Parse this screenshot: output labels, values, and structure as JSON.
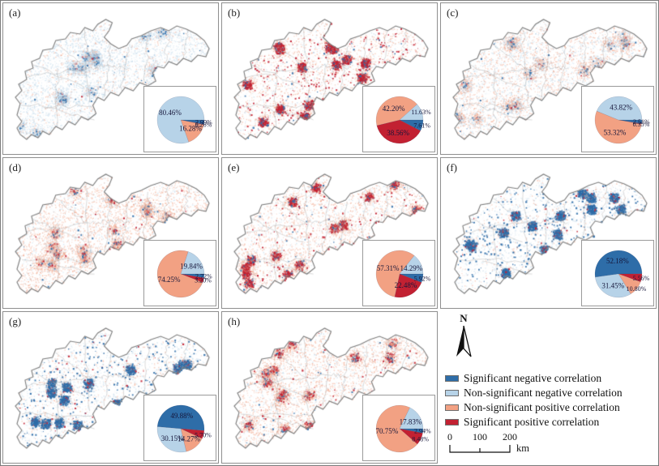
{
  "north_label": "N",
  "colors": {
    "sig_neg": "#2e6da8",
    "non_sig_neg": "#b7d3e8",
    "non_sig_pos": "#f2a183",
    "sig_pos": "#c22132",
    "pie_label_text": "#16163a",
    "panel_border": "#8f8f8f"
  },
  "legend": {
    "items": [
      {
        "category": "sig_neg",
        "label": "Significant negative correlation",
        "color": "#2e6da8"
      },
      {
        "category": "non_sig_neg",
        "label": "Non-significant negative correlation",
        "color": "#b7d3e8"
      },
      {
        "category": "non_sig_pos",
        "label": "Non-significant positive correlation",
        "color": "#f2a183"
      },
      {
        "category": "sig_pos",
        "label": "Significant positive correlation",
        "color": "#c22132"
      }
    ]
  },
  "scale_bar": {
    "tick_labels": [
      "0",
      "100",
      "200"
    ],
    "unit": "km"
  },
  "panels": [
    {
      "label": "(a)",
      "start_angle": 0,
      "pie": {
        "slices": [
          {
            "category": "sig_neg",
            "value": 2.99,
            "text": "2.99%"
          },
          {
            "category": "sig_pos",
            "value": 0.26,
            "text": "0.26%"
          },
          {
            "category": "non_sig_pos",
            "value": 16.28,
            "text": "16.28%"
          },
          {
            "category": "non_sig_neg",
            "value": 80.46,
            "text": "80.46%"
          }
        ]
      }
    },
    {
      "label": "(b)",
      "start_angle": 0,
      "pie": {
        "slices": [
          {
            "category": "sig_neg",
            "value": 7.61,
            "text": "7.61%"
          },
          {
            "category": "sig_pos",
            "value": 38.56,
            "text": "38.56%"
          },
          {
            "category": "non_sig_pos",
            "value": 42.2,
            "text": "42.20%"
          },
          {
            "category": "non_sig_neg",
            "value": 11.63,
            "text": "11.63%"
          }
        ]
      }
    },
    {
      "label": "(c)",
      "start_angle": 0,
      "pie": {
        "slices": [
          {
            "category": "sig_neg",
            "value": 2.51,
            "text": "2.51%"
          },
          {
            "category": "sig_pos",
            "value": 0.35,
            "text": "0.35%"
          },
          {
            "category": "non_sig_pos",
            "value": 53.32,
            "text": "53.32%"
          },
          {
            "category": "non_sig_neg",
            "value": 43.82,
            "text": "43.82%"
          }
        ]
      }
    },
    {
      "label": "(d)",
      "start_angle": 0,
      "pie": {
        "slices": [
          {
            "category": "sig_neg",
            "value": 2.72,
            "text": "2.72%"
          },
          {
            "category": "sig_pos",
            "value": 3.2,
            "text": "3.20%"
          },
          {
            "category": "non_sig_pos",
            "value": 74.25,
            "text": "74.25%"
          },
          {
            "category": "non_sig_neg",
            "value": 19.84,
            "text": "19.84%"
          }
        ]
      }
    },
    {
      "label": "(e)",
      "start_angle": 0,
      "pie": {
        "slices": [
          {
            "category": "sig_neg",
            "value": 5.92,
            "text": "5.92%"
          },
          {
            "category": "sig_pos",
            "value": 22.48,
            "text": "22.48%"
          },
          {
            "category": "non_sig_pos",
            "value": 57.31,
            "text": "57.31%"
          },
          {
            "category": "non_sig_neg",
            "value": 14.29,
            "text": "14.29%"
          }
        ]
      }
    },
    {
      "label": "(f)",
      "start_angle": 172,
      "pie": {
        "slices": [
          {
            "category": "sig_neg",
            "value": 52.18,
            "text": "52.18%"
          },
          {
            "category": "sig_pos",
            "value": 5.56,
            "text": "5.56%"
          },
          {
            "category": "non_sig_pos",
            "value": 10.8,
            "text": "10.80%"
          },
          {
            "category": "non_sig_neg",
            "value": 31.45,
            "text": "31.45%"
          }
        ]
      }
    },
    {
      "label": "(g)",
      "start_angle": 185,
      "pie": {
        "slices": [
          {
            "category": "sig_neg",
            "value": 49.88,
            "text": "49.88%"
          },
          {
            "category": "sig_pos",
            "value": 5.7,
            "text": "5.70%"
          },
          {
            "category": "non_sig_pos",
            "value": 14.27,
            "text": "14.27%"
          },
          {
            "category": "non_sig_neg",
            "value": 30.15,
            "text": "30.15%"
          }
        ]
      }
    },
    {
      "label": "(h)",
      "start_angle": 0,
      "pie": {
        "slices": [
          {
            "category": "sig_neg",
            "value": 2.94,
            "text": "2.94%"
          },
          {
            "category": "sig_pos",
            "value": 8.48,
            "text": "8.48%"
          },
          {
            "category": "non_sig_pos",
            "value": 70.75,
            "text": "70.75%"
          },
          {
            "category": "non_sig_neg",
            "value": 17.83,
            "text": "17.83%"
          }
        ]
      }
    }
  ],
  "chart_data": {
    "type": "pie",
    "note": "Eight correlation maps (a)-(h) of the same province, each with a pie inset giving the share of area per correlation class",
    "categories": [
      "Significant negative correlation",
      "Non-significant negative correlation",
      "Non-significant positive correlation",
      "Significant positive correlation"
    ],
    "panels": [
      {
        "panel": "(a)",
        "values": [
          2.99,
          80.46,
          16.28,
          0.26
        ]
      },
      {
        "panel": "(b)",
        "values": [
          7.61,
          11.63,
          42.2,
          38.56
        ]
      },
      {
        "panel": "(c)",
        "values": [
          2.51,
          43.82,
          53.32,
          0.35
        ]
      },
      {
        "panel": "(d)",
        "values": [
          2.72,
          19.84,
          74.25,
          3.2
        ]
      },
      {
        "panel": "(e)",
        "values": [
          5.92,
          14.29,
          57.31,
          22.48
        ]
      },
      {
        "panel": "(f)",
        "values": [
          52.18,
          31.45,
          10.8,
          5.56
        ]
      },
      {
        "panel": "(g)",
        "values": [
          49.88,
          30.15,
          14.27,
          5.7
        ]
      },
      {
        "panel": "(h)",
        "values": [
          2.94,
          17.83,
          70.75,
          8.48
        ]
      }
    ],
    "legend_position": "bottom-right cell",
    "scale_bar_km": [
      0,
      100,
      200
    ]
  }
}
